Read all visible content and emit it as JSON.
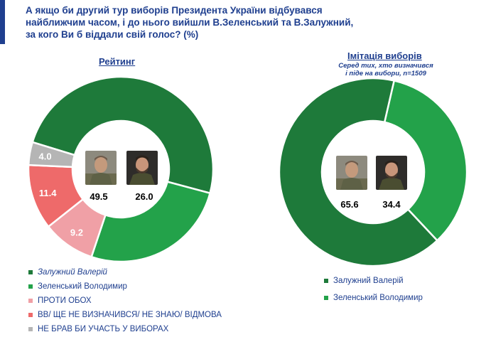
{
  "question": {
    "lines": [
      "А якщо би другий тур виборів Президента України відбувався",
      "найближчим часом, і до нього вийшли В.Зеленський та В.Залужний,",
      "за кого Ви б віддали свій голос? (%)"
    ]
  },
  "colors": {
    "accent": "#1f3f8f",
    "zaluzhnyi": "#1e7a3a",
    "zelenskyi": "#23a24a",
    "against_both": "#f0a0a6",
    "undecided": "#ee6a6a",
    "not_vote": "#b5b5b5"
  },
  "chart_data": [
    {
      "type": "pie",
      "title": "Рейтинг",
      "subtitle": "",
      "donut": true,
      "categories": [
        "Залужний Валерій",
        "Зеленський Володимир",
        "ПРОТИ ОБОХ",
        "ВВ/ ЩЕ НЕ ВИЗНАЧИВСЯ/ НЕ ЗНАЮ/ ВІДМОВА",
        "НЕ БРАВ БИ УЧАСТЬ У ВИБОРАХ"
      ],
      "values": [
        49.5,
        26.0,
        9.2,
        11.4,
        4.0
      ],
      "value_labels": [
        "49.5",
        "26.0",
        "9.2",
        "11.4",
        "4.0"
      ],
      "colors": [
        "#1e7a3a",
        "#23a24a",
        "#f0a0a6",
        "#ee6a6a",
        "#b5b5b5"
      ],
      "legend": "bottom-left"
    },
    {
      "type": "pie",
      "title": "Імітація виборів",
      "subtitle": "Серед тих, хто визначився і піде на вибори, n=1509",
      "subtitle_lines": [
        "Серед тих, хто визначився",
        "і піде на вибори, n=1509"
      ],
      "donut": true,
      "categories": [
        "Залужний Валерій",
        "Зеленський Володимир"
      ],
      "values": [
        65.6,
        34.4
      ],
      "value_labels": [
        "65.6",
        "34.4"
      ],
      "colors": [
        "#1e7a3a",
        "#23a24a"
      ],
      "legend": "bottom-right"
    }
  ]
}
